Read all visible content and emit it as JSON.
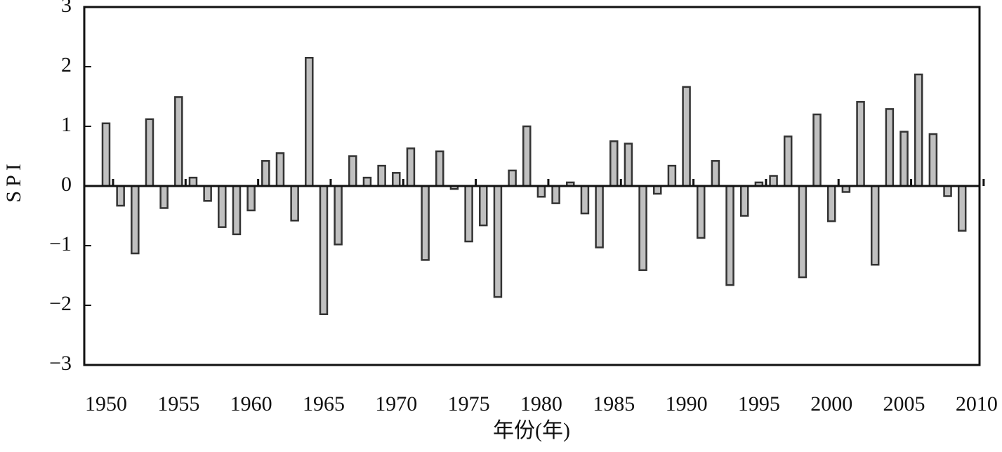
{
  "chart_data": {
    "type": "bar",
    "x_label": "年份(年)",
    "y_label": "SPI",
    "x": [
      1950,
      1951,
      1952,
      1953,
      1954,
      1955,
      1956,
      1957,
      1958,
      1959,
      1960,
      1961,
      1962,
      1963,
      1964,
      1965,
      1966,
      1967,
      1968,
      1969,
      1970,
      1971,
      1972,
      1973,
      1974,
      1975,
      1976,
      1977,
      1978,
      1979,
      1980,
      1981,
      1982,
      1983,
      1984,
      1985,
      1986,
      1987,
      1988,
      1989,
      1990,
      1991,
      1992,
      1993,
      1994,
      1995,
      1996,
      1997,
      1998,
      1999,
      2000,
      2001,
      2002,
      2003,
      2004,
      2005,
      2006,
      2007,
      2008,
      2009
    ],
    "values": [
      1.05,
      -0.33,
      -1.13,
      1.12,
      -0.37,
      1.49,
      0.14,
      -0.25,
      -0.69,
      -0.81,
      -0.41,
      0.42,
      0.55,
      -0.58,
      2.15,
      -2.15,
      -0.98,
      0.5,
      0.14,
      0.34,
      0.22,
      0.63,
      -1.24,
      0.58,
      -0.05,
      -0.93,
      -0.66,
      -1.86,
      0.26,
      1.0,
      -0.18,
      -0.29,
      0.06,
      -0.46,
      -1.03,
      0.75,
      0.71,
      -1.41,
      -0.13,
      0.34,
      1.66,
      -0.87,
      0.42,
      -1.66,
      -0.5,
      0.06,
      0.17,
      0.83,
      -1.53,
      1.2,
      -0.59,
      -0.1,
      1.41,
      -1.32,
      1.29,
      0.91,
      1.87,
      0.87,
      -0.17,
      -0.75
    ],
    "color": "#c0c0c0",
    "xlim": [
      1948.5,
      2010.2
    ],
    "xticks": [
      1950,
      1955,
      1960,
      1965,
      1970,
      1975,
      1980,
      1985,
      1990,
      1995,
      2000,
      2005,
      2010
    ],
    "ylim": [
      -3,
      3
    ],
    "yticks": [
      {
        "value": -3,
        "label": "−3"
      },
      {
        "value": -2,
        "label": "−2"
      },
      {
        "value": -1,
        "label": "−1"
      },
      0,
      1,
      2,
      3
    ],
    "grid": false
  }
}
